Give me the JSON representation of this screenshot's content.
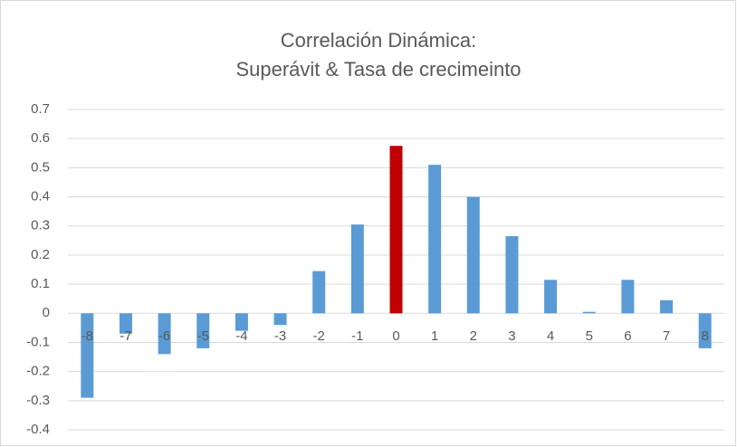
{
  "chart_data": {
    "type": "bar",
    "title": [
      "Correlación Dinámica:",
      "Superávit & Tasa de crecimeinto"
    ],
    "categories": [
      "-8",
      "-7",
      "-6",
      "-5",
      "-4",
      "-3",
      "-2",
      "-1",
      "0",
      "1",
      "2",
      "3",
      "4",
      "5",
      "6",
      "7",
      "8"
    ],
    "values": [
      -0.29,
      -0.07,
      -0.14,
      -0.12,
      -0.06,
      -0.04,
      0.145,
      0.305,
      0.575,
      0.51,
      0.4,
      0.265,
      0.115,
      0.005,
      0.115,
      0.045,
      -0.12
    ],
    "colors": [
      "#5b9bd5",
      "#5b9bd5",
      "#5b9bd5",
      "#5b9bd5",
      "#5b9bd5",
      "#5b9bd5",
      "#5b9bd5",
      "#5b9bd5",
      "#c00000",
      "#5b9bd5",
      "#5b9bd5",
      "#5b9bd5",
      "#5b9bd5",
      "#5b9bd5",
      "#5b9bd5",
      "#5b9bd5",
      "#5b9bd5"
    ],
    "ylim": [
      -0.4,
      0.7
    ],
    "yticks": [
      -0.4,
      -0.3,
      -0.2,
      -0.1,
      0,
      0.1,
      0.2,
      0.3,
      0.4,
      0.5,
      0.6,
      0.7
    ],
    "grid": true
  }
}
